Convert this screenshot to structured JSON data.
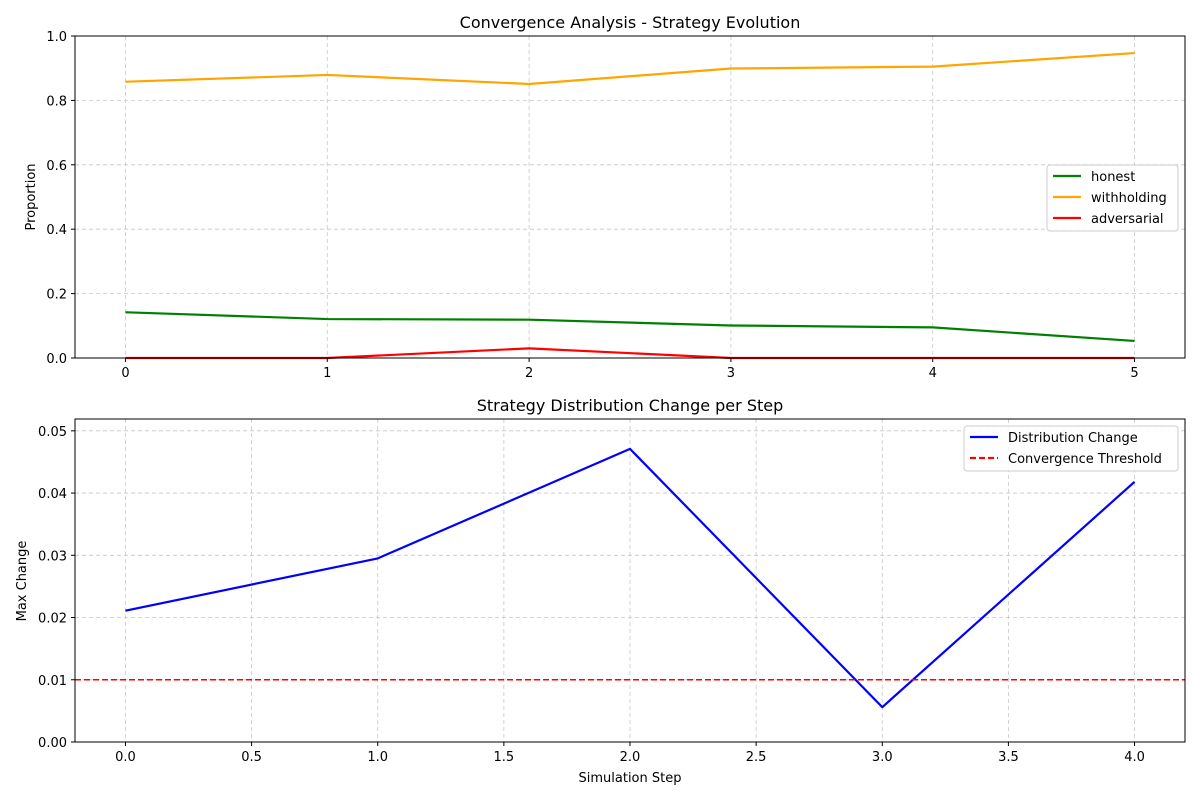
{
  "chart_data": [
    {
      "type": "line",
      "title": "Convergence Analysis - Strategy Evolution",
      "xlabel": "",
      "ylabel": "Proportion",
      "xlim": [
        -0.25,
        5.25
      ],
      "ylim": [
        0,
        1.0
      ],
      "xticks": [
        0,
        1,
        2,
        3,
        4,
        5
      ],
      "xtick_labels": [
        "0",
        "1",
        "2",
        "3",
        "4",
        "5"
      ],
      "yticks": [
        0,
        0.2,
        0.4,
        0.6,
        0.8,
        1.0
      ],
      "ytick_labels": [
        "0.0",
        "0.2",
        "0.4",
        "0.6",
        "0.8",
        "1.0"
      ],
      "grid": true,
      "legend": "center-right",
      "x": [
        0,
        1,
        2,
        3,
        4,
        5
      ],
      "series": [
        {
          "name": "honest",
          "color": "#008000",
          "dash": "solid",
          "values": [
            0.142,
            0.121,
            0.119,
            0.101,
            0.095,
            0.053
          ]
        },
        {
          "name": "withholding",
          "color": "#FFA500",
          "dash": "solid",
          "values": [
            0.858,
            0.879,
            0.851,
            0.899,
            0.905,
            0.947
          ]
        },
        {
          "name": "adversarial",
          "color": "#FF0000",
          "dash": "solid",
          "values": [
            0.0,
            0.0,
            0.03,
            0.0,
            0.0,
            0.0
          ]
        }
      ]
    },
    {
      "type": "line",
      "title": "Strategy Distribution Change per Step",
      "xlabel": "Simulation Step",
      "ylabel": "Max Change",
      "xlim": [
        -0.2,
        4.2
      ],
      "ylim": [
        0,
        0.0519
      ],
      "xticks": [
        0,
        0.5,
        1.0,
        1.5,
        2.0,
        2.5,
        3.0,
        3.5,
        4.0
      ],
      "xtick_labels": [
        "0.0",
        "0.5",
        "1.0",
        "1.5",
        "2.0",
        "2.5",
        "3.0",
        "3.5",
        "4.0"
      ],
      "yticks": [
        0,
        0.01,
        0.02,
        0.03,
        0.04,
        0.05
      ],
      "ytick_labels": [
        "0.00",
        "0.01",
        "0.02",
        "0.03",
        "0.04",
        "0.05"
      ],
      "grid": true,
      "legend": "top-right",
      "x": [
        0,
        1,
        2,
        3,
        4
      ],
      "series": [
        {
          "name": "Distribution Change",
          "color": "#0000FF",
          "dash": "solid",
          "values": [
            0.0211,
            0.0295,
            0.0471,
            0.0056,
            0.0418
          ]
        },
        {
          "name": "Convergence Threshold",
          "color": "#FF0000",
          "dash": "dashed",
          "hline": 0.01
        }
      ]
    }
  ]
}
